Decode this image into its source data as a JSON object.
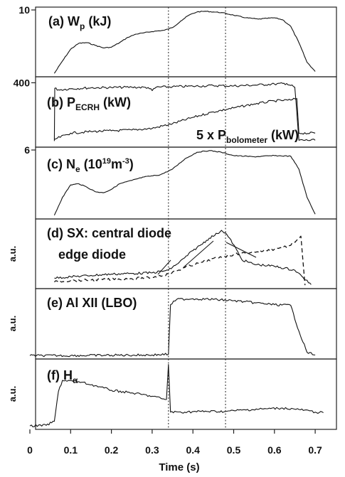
{
  "chart_data": {
    "type": "line",
    "xlabel": "Time (s)",
    "xlim": [
      0,
      0.72
    ],
    "xticks": [
      "0",
      "0.1",
      "0.2",
      "0.3",
      "0.4",
      "0.5",
      "0.6",
      "0.7"
    ],
    "xtick_values": [
      0,
      0.1,
      0.2,
      0.3,
      0.4,
      0.5,
      0.6,
      0.7
    ],
    "vertical_markers": [
      0.34,
      0.48
    ],
    "panels": [
      {
        "id": "a",
        "label": {
          "main": "(a)  W",
          "sub": "p",
          "tail": " (kJ)"
        },
        "ylim": [
          0,
          10
        ],
        "yticks": [
          {
            "value": 10,
            "label": "10"
          }
        ],
        "ylabel": "",
        "series": [
          {
            "style": "solid",
            "points": [
              [
                0.06,
                0.3
              ],
              [
                0.08,
                2.2
              ],
              [
                0.1,
                4.0
              ],
              [
                0.12,
                4.9
              ],
              [
                0.14,
                5.0
              ],
              [
                0.16,
                4.6
              ],
              [
                0.18,
                4.2
              ],
              [
                0.2,
                4.3
              ],
              [
                0.22,
                5.0
              ],
              [
                0.24,
                5.8
              ],
              [
                0.26,
                6.3
              ],
              [
                0.28,
                6.5
              ],
              [
                0.3,
                6.7
              ],
              [
                0.33,
                6.9
              ],
              [
                0.35,
                7.3
              ],
              [
                0.37,
                8.3
              ],
              [
                0.39,
                9.2
              ],
              [
                0.41,
                9.7
              ],
              [
                0.43,
                9.8
              ],
              [
                0.45,
                9.7
              ],
              [
                0.47,
                9.6
              ],
              [
                0.5,
                9.2
              ],
              [
                0.53,
                8.8
              ],
              [
                0.56,
                8.6
              ],
              [
                0.6,
                8.8
              ],
              [
                0.62,
                8.5
              ],
              [
                0.64,
                7.5
              ],
              [
                0.66,
                5.0
              ],
              [
                0.68,
                2.0
              ],
              [
                0.7,
                0.6
              ]
            ]
          }
        ]
      },
      {
        "id": "b",
        "label": {
          "main": "(b)  P",
          "sub": "ECRH",
          "tail": " (kW)"
        },
        "label2": {
          "main": "5 x P",
          "sub": "bolometer",
          "tail": " (kW)"
        },
        "ylim": [
          0,
          420
        ],
        "yticks": [
          {
            "value": 400,
            "label": "400"
          }
        ],
        "ylabel": "",
        "series": [
          {
            "style": "solid",
            "points": [
              [
                0.06,
                30
              ],
              [
                0.061,
                365
              ],
              [
                0.07,
                355
              ],
              [
                0.1,
                362
              ],
              [
                0.15,
                368
              ],
              [
                0.2,
                370
              ],
              [
                0.25,
                372
              ],
              [
                0.29,
                370
              ],
              [
                0.3,
                350
              ],
              [
                0.31,
                372
              ],
              [
                0.35,
                375
              ],
              [
                0.4,
                378
              ],
              [
                0.45,
                382
              ],
              [
                0.5,
                380
              ],
              [
                0.55,
                385
              ],
              [
                0.6,
                392
              ],
              [
                0.63,
                395
              ],
              [
                0.65,
                372
              ],
              [
                0.66,
                35
              ],
              [
                0.7,
                35
              ]
            ]
          },
          {
            "style": "solid",
            "points": [
              [
                0.06,
                40
              ],
              [
                0.1,
                80
              ],
              [
                0.15,
                90
              ],
              [
                0.2,
                95
              ],
              [
                0.25,
                100
              ],
              [
                0.3,
                110
              ],
              [
                0.35,
                140
              ],
              [
                0.4,
                180
              ],
              [
                0.45,
                215
              ],
              [
                0.5,
                240
              ],
              [
                0.55,
                265
              ],
              [
                0.6,
                285
              ],
              [
                0.64,
                290
              ],
              [
                0.655,
                300
              ],
              [
                0.66,
                80
              ],
              [
                0.7,
                80
              ]
            ]
          }
        ]
      },
      {
        "id": "c",
        "label": {
          "main": "(c)  N",
          "sub": "e",
          "tail": " (10",
          "sup": "19",
          "tail2": "m",
          "sup2": "-3",
          "tail3": ")"
        },
        "ylim": [
          0,
          6
        ],
        "yticks": [
          {
            "value": 6,
            "label": "6"
          }
        ],
        "ylabel": "",
        "series": [
          {
            "style": "solid",
            "points": [
              [
                0.06,
                0.2
              ],
              [
                0.08,
                1.8
              ],
              [
                0.1,
                2.9
              ],
              [
                0.12,
                3.0
              ],
              [
                0.14,
                2.7
              ],
              [
                0.16,
                2.3
              ],
              [
                0.18,
                2.2
              ],
              [
                0.2,
                2.5
              ],
              [
                0.22,
                3.0
              ],
              [
                0.25,
                3.3
              ],
              [
                0.28,
                3.6
              ],
              [
                0.32,
                3.8
              ],
              [
                0.35,
                4.3
              ],
              [
                0.38,
                5.2
              ],
              [
                0.41,
                5.8
              ],
              [
                0.44,
                5.95
              ],
              [
                0.47,
                5.8
              ],
              [
                0.5,
                5.5
              ],
              [
                0.55,
                5.4
              ],
              [
                0.6,
                5.5
              ],
              [
                0.64,
                5.45
              ],
              [
                0.66,
                4.3
              ],
              [
                0.68,
                1.8
              ],
              [
                0.7,
                0.3
              ]
            ]
          }
        ]
      },
      {
        "id": "d",
        "label": {
          "main": "(d)  SX: central diode"
        },
        "label2": {
          "main": "edge diode"
        },
        "ylim": [
          0,
          10
        ],
        "yticks": [],
        "ylabel": "a.u.",
        "series": [
          {
            "style": "solid",
            "points": [
              [
                0.06,
                1.4
              ],
              [
                0.1,
                1.6
              ],
              [
                0.15,
                1.8
              ],
              [
                0.2,
                2.0
              ],
              [
                0.25,
                2.1
              ],
              [
                0.3,
                2.2
              ],
              [
                0.34,
                2.6
              ],
              [
                0.36,
                3.5
              ],
              [
                0.38,
                4.5
              ],
              [
                0.4,
                5.6
              ],
              [
                0.42,
                6.5
              ],
              [
                0.44,
                7.5
              ],
              [
                0.46,
                8.2
              ],
              [
                0.47,
                8.7
              ],
              [
                0.48,
                8.3
              ],
              [
                0.5,
                6.5
              ],
              [
                0.52,
                4.2
              ],
              [
                0.55,
                3.5
              ],
              [
                0.6,
                3.2
              ],
              [
                0.65,
                2.6
              ],
              [
                0.67,
                1.5
              ],
              [
                0.69,
                0.4
              ]
            ]
          },
          {
            "style": "dashed",
            "points": [
              [
                0.06,
                0.8
              ],
              [
                0.1,
                1.0
              ],
              [
                0.15,
                1.1
              ],
              [
                0.2,
                1.2
              ],
              [
                0.25,
                1.3
              ],
              [
                0.3,
                1.5
              ],
              [
                0.34,
                2.0
              ],
              [
                0.38,
                3.0
              ],
              [
                0.42,
                3.8
              ],
              [
                0.46,
                4.5
              ],
              [
                0.5,
                5.0
              ],
              [
                0.55,
                5.4
              ],
              [
                0.6,
                5.8
              ],
              [
                0.64,
                6.4
              ],
              [
                0.665,
                7.8
              ],
              [
                0.67,
                4.0
              ],
              [
                0.675,
                0.3
              ]
            ]
          }
        ]
      },
      {
        "id": "e",
        "label": {
          "main": "(e)  Al XII (LBO)"
        },
        "ylim": [
          0,
          10
        ],
        "yticks": [],
        "ylabel": "a.u.",
        "series": [
          {
            "style": "solid",
            "points": [
              [
                0.0,
                0.3
              ],
              [
                0.1,
                0.3
              ],
              [
                0.2,
                0.35
              ],
              [
                0.3,
                0.4
              ],
              [
                0.34,
                0.5
              ],
              [
                0.345,
                8.0
              ],
              [
                0.36,
                8.8
              ],
              [
                0.4,
                8.9
              ],
              [
                0.45,
                8.8
              ],
              [
                0.5,
                8.6
              ],
              [
                0.55,
                8.3
              ],
              [
                0.6,
                8.0
              ],
              [
                0.64,
                7.9
              ],
              [
                0.66,
                4.0
              ],
              [
                0.68,
                0.8
              ],
              [
                0.7,
                0.4
              ]
            ]
          }
        ]
      },
      {
        "id": "f",
        "label": {
          "main": "(f)  H",
          "sub": "α"
        },
        "ylim": [
          0,
          10
        ],
        "yticks": [],
        "ylabel": "a.u.",
        "series": [
          {
            "style": "solid",
            "points": [
              [
                0.0,
                0.3
              ],
              [
                0.04,
                0.4
              ],
              [
                0.06,
                1.0
              ],
              [
                0.07,
                5.5
              ],
              [
                0.08,
                7.2
              ],
              [
                0.12,
                7.0
              ],
              [
                0.16,
                6.4
              ],
              [
                0.2,
                5.7
              ],
              [
                0.25,
                5.3
              ],
              [
                0.3,
                4.8
              ],
              [
                0.335,
                4.3
              ],
              [
                0.34,
                9.6
              ],
              [
                0.345,
                2.4
              ],
              [
                0.38,
                2.4
              ],
              [
                0.42,
                2.5
              ],
              [
                0.48,
                2.5
              ],
              [
                0.52,
                2.7
              ],
              [
                0.58,
                2.9
              ],
              [
                0.62,
                3.0
              ],
              [
                0.66,
                2.8
              ],
              [
                0.7,
                2.4
              ],
              [
                0.72,
                2.3
              ]
            ]
          }
        ]
      }
    ]
  }
}
